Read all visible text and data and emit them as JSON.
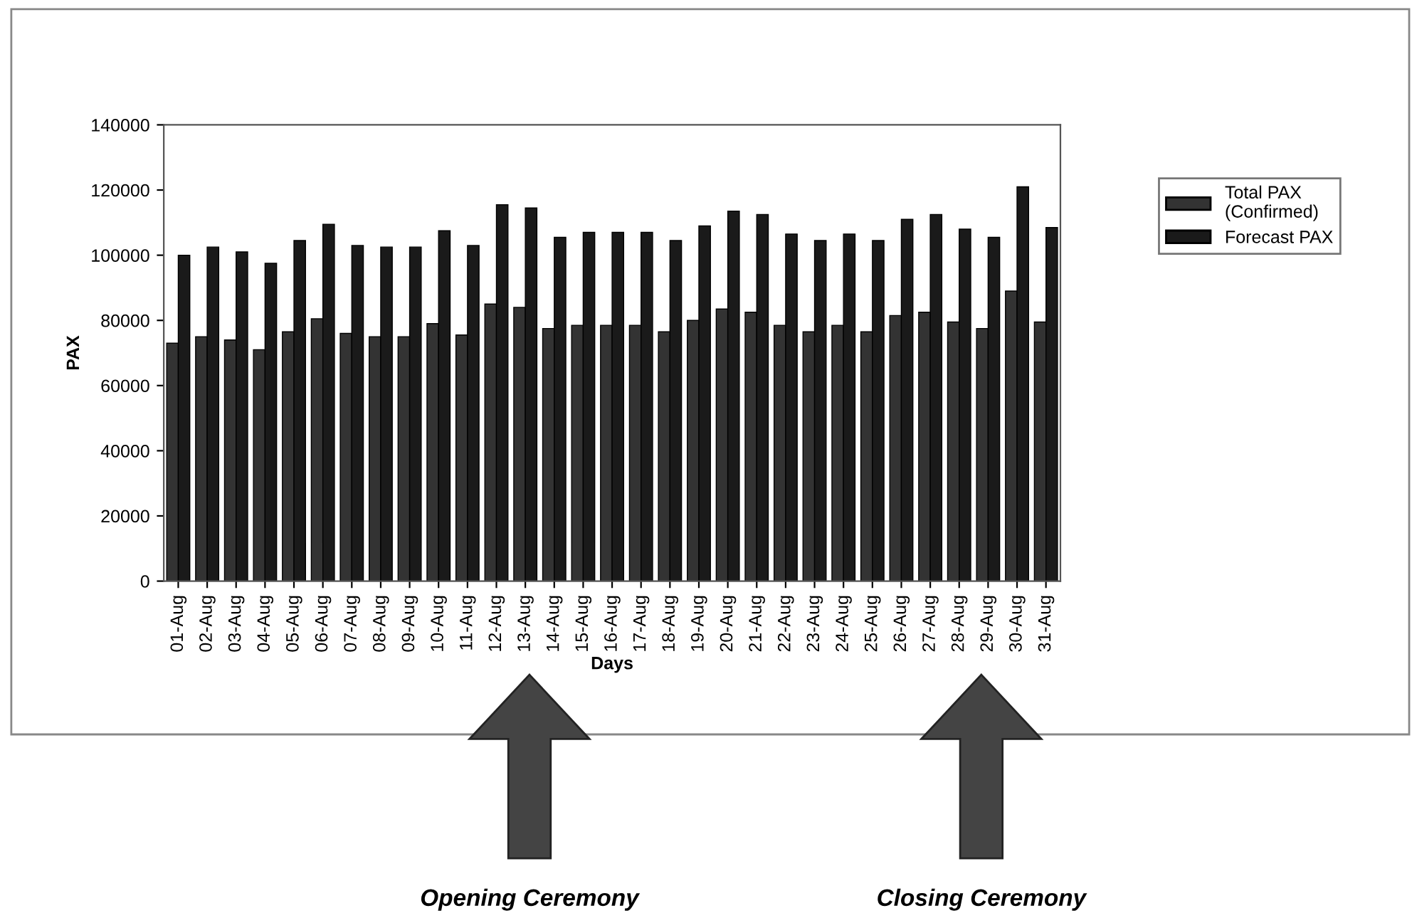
{
  "chart_data": {
    "type": "bar",
    "xlabel": "Days",
    "ylabel": "PAX",
    "categories": [
      "01-Aug",
      "02-Aug",
      "03-Aug",
      "04-Aug",
      "05-Aug",
      "06-Aug",
      "07-Aug",
      "08-Aug",
      "09-Aug",
      "10-Aug",
      "11-Aug",
      "12-Aug",
      "13-Aug",
      "14-Aug",
      "15-Aug",
      "16-Aug",
      "17-Aug",
      "18-Aug",
      "19-Aug",
      "20-Aug",
      "21-Aug",
      "22-Aug",
      "23-Aug",
      "24-Aug",
      "25-Aug",
      "26-Aug",
      "27-Aug",
      "28-Aug",
      "29-Aug",
      "30-Aug",
      "31-Aug"
    ],
    "series": [
      {
        "name": "Total PAX (Confirmed)",
        "color": "#333333",
        "values": [
          73000,
          75000,
          74000,
          71000,
          76500,
          80500,
          76000,
          75000,
          75000,
          79000,
          75500,
          85000,
          84000,
          77500,
          78500,
          78500,
          78500,
          76500,
          80000,
          83500,
          82500,
          78500,
          76500,
          78500,
          76500,
          81500,
          82500,
          79500,
          77500,
          89000,
          79500
        ]
      },
      {
        "name": "Forecast PAX",
        "color": "#1a1a1a",
        "values": [
          100000,
          102500,
          101000,
          97500,
          104500,
          109500,
          103000,
          102500,
          102500,
          107500,
          103000,
          115500,
          114500,
          105500,
          107000,
          107000,
          107000,
          104500,
          109000,
          113500,
          112500,
          106500,
          104500,
          106500,
          104500,
          111000,
          112500,
          108000,
          105500,
          121000,
          108500
        ]
      }
    ],
    "ylim": [
      0,
      140000
    ],
    "yticks": [
      0,
      20000,
      40000,
      60000,
      80000,
      100000,
      120000,
      140000
    ],
    "grid": false,
    "legend": "right",
    "annotations": [
      "Opening Ceremony",
      "Closing Ceremony"
    ]
  }
}
